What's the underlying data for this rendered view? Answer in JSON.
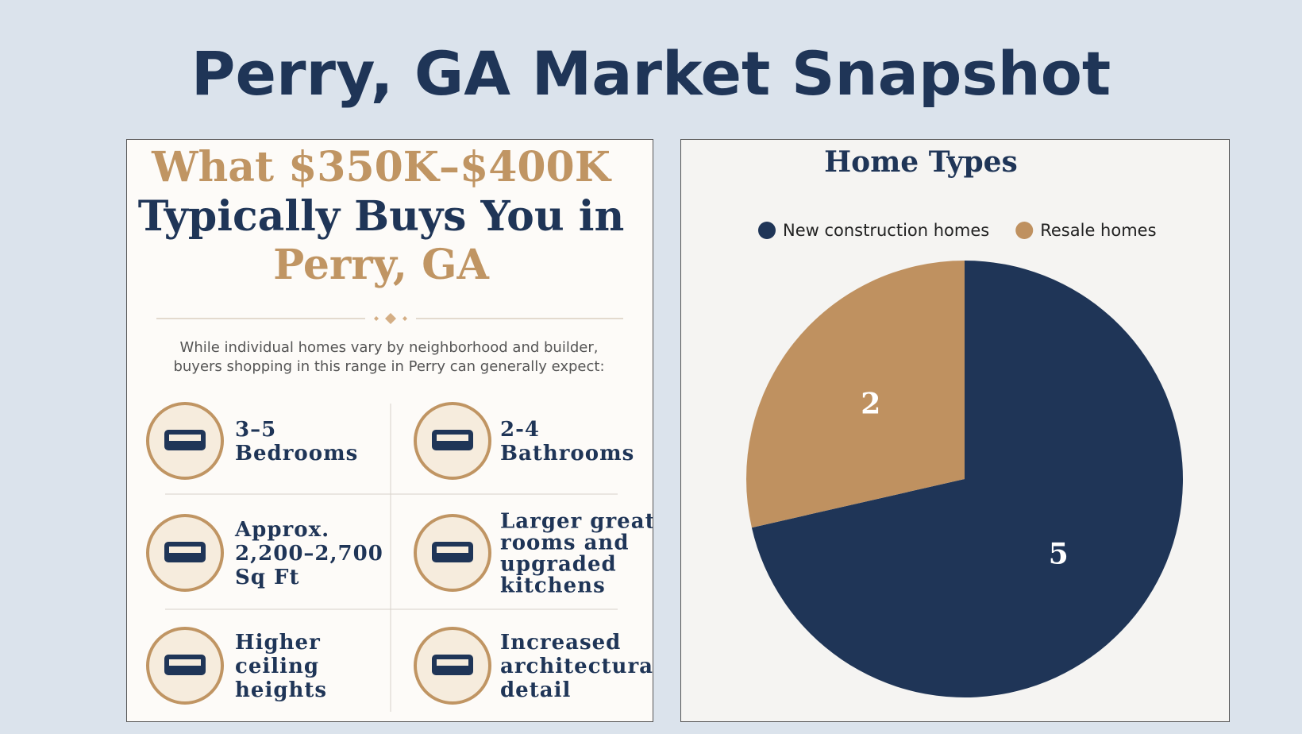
{
  "title": "Perry, GA Market Snapshot",
  "infographic": {
    "headline": [
      "What $350K–$400K",
      "Typically Buys You in",
      "Perry, GA"
    ],
    "intro": [
      "While individual homes vary by neighborhood and builder,",
      "buyers shopping in this range in Perry can generally expect:"
    ],
    "items": [
      {
        "lines": [
          "3–5",
          "Bedrooms"
        ]
      },
      {
        "lines": [
          "2-4",
          "Bathrooms"
        ]
      },
      {
        "lines": [
          "Approx.",
          "2,200–2,700",
          "Sq Ft"
        ]
      },
      {
        "lines": [
          "Larger great",
          "rooms and",
          "upgraded",
          "kitchens"
        ]
      },
      {
        "lines": [
          "Higher",
          "ceiling",
          "heights"
        ]
      },
      {
        "lines": [
          "Increased",
          "architectural",
          "detail"
        ]
      }
    ]
  },
  "chart_data": {
    "type": "pie",
    "title": "Home Types",
    "categories": [
      "New construction homes",
      "Resale homes"
    ],
    "values": [
      5,
      2
    ],
    "colors": [
      "#1f3557",
      "#bf9160"
    ],
    "legend": "top"
  }
}
